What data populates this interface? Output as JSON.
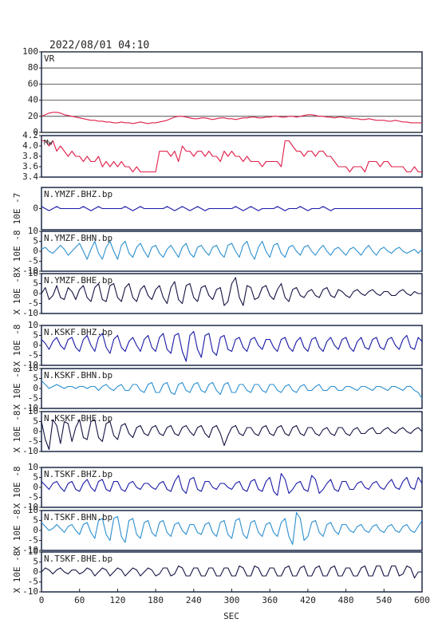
{
  "chart_data": {
    "type": "line",
    "title": "2022/08/01 04:10",
    "xlabel": "SEC",
    "xlim": [
      0,
      600
    ],
    "xticks": [
      0,
      60,
      120,
      180,
      240,
      300,
      360,
      420,
      480,
      540,
      600
    ],
    "x": [
      0,
      6,
      12,
      18,
      24,
      30,
      36,
      42,
      48,
      54,
      60,
      66,
      72,
      78,
      84,
      90,
      96,
      102,
      108,
      114,
      120,
      126,
      132,
      138,
      144,
      150,
      156,
      162,
      168,
      174,
      180,
      186,
      192,
      198,
      204,
      210,
      216,
      222,
      228,
      234,
      240,
      246,
      252,
      258,
      264,
      270,
      276,
      282,
      288,
      294,
      300,
      306,
      312,
      318,
      324,
      330,
      336,
      342,
      348,
      354,
      360,
      366,
      372,
      378,
      384,
      390,
      396,
      402,
      408,
      414,
      420,
      426,
      432,
      438,
      444,
      450,
      456,
      462,
      468,
      474,
      480,
      486,
      492,
      498,
      504,
      510,
      516,
      522,
      528,
      534,
      540,
      546,
      552,
      558,
      564,
      570,
      576,
      582,
      588,
      594,
      600
    ],
    "panels": [
      {
        "label": "VR",
        "color": "#e0204a",
        "ylim": [
          0,
          100
        ],
        "yticks": [
          0,
          20,
          40,
          60,
          80,
          100
        ],
        "grid": true,
        "values": [
          20,
          22,
          24,
          25,
          25,
          24,
          22,
          21,
          20,
          19,
          18,
          17,
          16,
          15,
          15,
          14,
          14,
          13,
          13,
          12,
          12,
          13,
          12,
          12,
          11,
          12,
          13,
          12,
          11,
          12,
          12,
          13,
          14,
          15,
          17,
          19,
          20,
          20,
          19,
          18,
          17,
          17,
          18,
          18,
          17,
          16,
          17,
          18,
          18,
          17,
          17,
          16,
          17,
          18,
          18,
          19,
          19,
          18,
          18,
          19,
          19,
          20,
          20,
          19,
          19,
          20,
          20,
          19,
          20,
          21,
          22,
          22,
          21,
          20,
          20,
          19,
          19,
          18,
          19,
          19,
          18,
          18,
          17,
          17,
          16,
          16,
          17,
          16,
          15,
          15,
          15,
          14,
          14,
          15,
          14,
          13,
          13,
          12,
          12,
          12,
          12
        ]
      },
      {
        "label": "Mw",
        "color": "#e0204a",
        "ylim": [
          3.4,
          4.2
        ],
        "yticks": [
          3.4,
          3.6,
          3.8,
          {
            "value": 4,
            "label": "4.0"
          },
          4.2
        ],
        "grid": false,
        "values": [
          4.1,
          4.1,
          4.0,
          4.1,
          3.9,
          4.0,
          3.9,
          3.8,
          3.9,
          3.8,
          3.8,
          3.7,
          3.8,
          3.7,
          3.7,
          3.8,
          3.6,
          3.7,
          3.6,
          3.7,
          3.6,
          3.7,
          3.6,
          3.6,
          3.5,
          3.6,
          3.5,
          3.5,
          3.5,
          3.5,
          3.5,
          3.9,
          3.9,
          3.9,
          3.8,
          3.9,
          3.7,
          4.0,
          3.9,
          3.9,
          3.8,
          3.9,
          3.9,
          3.8,
          3.9,
          3.8,
          3.8,
          3.7,
          3.9,
          3.8,
          3.9,
          3.8,
          3.8,
          3.7,
          3.8,
          3.7,
          3.7,
          3.7,
          3.6,
          3.7,
          3.7,
          3.7,
          3.7,
          3.6,
          4.1,
          4.1,
          4.0,
          3.9,
          3.9,
          3.8,
          3.9,
          3.9,
          3.8,
          3.9,
          3.9,
          3.8,
          3.8,
          3.7,
          3.6,
          3.6,
          3.6,
          3.5,
          3.6,
          3.6,
          3.6,
          3.5,
          3.7,
          3.7,
          3.7,
          3.6,
          3.7,
          3.7,
          3.6,
          3.6,
          3.6,
          3.6,
          3.5,
          3.5,
          3.6,
          3.5,
          3.5
        ]
      },
      {
        "label": "N.YMZF.BHZ.bp",
        "ylabel": "10E -7",
        "color": "#1a1aa8",
        "ylim": [
          -1,
          1
        ],
        "yticks": [
          0
        ],
        "grid": false,
        "values": [
          0.1,
          0,
          -0.1,
          0,
          0.1,
          0,
          0,
          0,
          0,
          0,
          0,
          0.1,
          0,
          -0.1,
          0,
          0.1,
          0,
          0,
          0,
          0,
          0,
          0,
          0.1,
          0,
          -0.1,
          0,
          0.1,
          0,
          0,
          0,
          0,
          0,
          0,
          0.1,
          0,
          -0.1,
          0,
          0.1,
          0,
          -0.1,
          0,
          0.1,
          0,
          -0.1,
          0,
          0,
          0,
          0,
          0,
          0,
          0,
          0.1,
          0,
          -0.1,
          0,
          0.1,
          0,
          -0.1,
          0,
          0,
          0,
          0,
          0.1,
          0,
          -0.1,
          0,
          0,
          0,
          0.1,
          0,
          -0.1,
          0,
          0,
          0,
          0.1,
          0,
          -0.1,
          0,
          0,
          0,
          0,
          0,
          0,
          0,
          0,
          0,
          0,
          0,
          0,
          0,
          0,
          0,
          0,
          0,
          0,
          0,
          0,
          0,
          0,
          0,
          0
        ]
      },
      {
        "label": "N.YMZF.BHN.bp",
        "ylabel": "X 10E -8",
        "color": "#2b8fd0",
        "ylim": [
          -10,
          10
        ],
        "yticks": [
          -10,
          -5,
          0,
          5,
          10
        ],
        "grid": false,
        "values": [
          1,
          2,
          0,
          -1,
          1,
          3,
          1,
          -2,
          0,
          2,
          4,
          0,
          -4,
          1,
          5,
          -1,
          -4,
          2,
          5,
          0,
          -4,
          3,
          5,
          -1,
          -3,
          2,
          4,
          0,
          -3,
          2,
          3,
          -1,
          -3,
          1,
          3,
          0,
          -3,
          2,
          4,
          -1,
          -3,
          2,
          3,
          0,
          -2,
          2,
          3,
          -1,
          -3,
          3,
          4,
          0,
          -3,
          3,
          5,
          -1,
          -4,
          2,
          5,
          0,
          -3,
          3,
          4,
          -1,
          -3,
          2,
          3,
          0,
          -2,
          2,
          3,
          0,
          -2,
          1,
          3,
          0,
          -2,
          1,
          2,
          0,
          -2,
          1,
          2,
          0,
          -2,
          1,
          3,
          0,
          -2,
          1,
          2,
          0,
          -1,
          1,
          2,
          0,
          -1,
          0,
          1,
          -1,
          1
        ]
      },
      {
        "label": "N.YMZF.BHE.bp",
        "ylabel": "X 10E -8",
        "color": "#141444",
        "ylim": [
          -10,
          10
        ],
        "yticks": [
          -10,
          -5,
          0,
          5,
          10
        ],
        "grid": false,
        "values": [
          0,
          3,
          -3,
          -1,
          4,
          -2,
          -3,
          3,
          1,
          -3,
          2,
          4,
          -2,
          -4,
          3,
          5,
          -3,
          -4,
          4,
          5,
          -2,
          -4,
          3,
          5,
          -2,
          -4,
          2,
          4,
          -1,
          -3,
          2,
          4,
          -2,
          -5,
          3,
          6,
          -3,
          -5,
          4,
          5,
          -2,
          -4,
          3,
          4,
          -1,
          -3,
          2,
          3,
          -6,
          -4,
          5,
          8,
          -2,
          -6,
          4,
          3,
          -3,
          -2,
          3,
          4,
          -1,
          -3,
          2,
          5,
          -2,
          -4,
          2,
          3,
          -1,
          -2,
          1,
          2,
          -1,
          -2,
          2,
          3,
          -1,
          -2,
          2,
          1,
          -1,
          -2,
          1,
          2,
          0,
          -1,
          1,
          2,
          0,
          -1,
          1,
          1,
          -1,
          -1,
          1,
          2,
          0,
          -1,
          1,
          0,
          0
        ]
      },
      {
        "label": "N.KSKF.BHZ.bp",
        "ylabel": "X 10E -8",
        "color": "#1a1aa8",
        "ylim": [
          -10,
          10
        ],
        "yticks": [
          -10,
          -5,
          0,
          5,
          10
        ],
        "grid": false,
        "values": [
          3,
          1,
          -2,
          2,
          4,
          0,
          -2,
          3,
          4,
          -1,
          -3,
          3,
          5,
          0,
          -3,
          4,
          6,
          -1,
          -4,
          3,
          5,
          -1,
          -3,
          2,
          4,
          0,
          -3,
          3,
          5,
          -1,
          -3,
          4,
          6,
          -2,
          -4,
          5,
          6,
          -3,
          -8,
          5,
          7,
          -2,
          -6,
          5,
          6,
          -3,
          -5,
          4,
          5,
          -2,
          -3,
          3,
          4,
          -1,
          -3,
          3,
          4,
          0,
          -2,
          3,
          3,
          -1,
          -3,
          3,
          4,
          -1,
          -3,
          2,
          4,
          -1,
          -3,
          3,
          4,
          -1,
          -3,
          2,
          4,
          0,
          -2,
          3,
          4,
          -1,
          -3,
          2,
          4,
          -1,
          -2,
          3,
          4,
          -1,
          -2,
          3,
          4,
          0,
          -2,
          3,
          5,
          -1,
          -2,
          4,
          2
        ]
      },
      {
        "label": "N.KSKF.BHN.bp",
        "ylabel": "X 10E -8",
        "color": "#2b8fd0",
        "ylim": [
          -10,
          10
        ],
        "yticks": [
          -10,
          -5,
          0,
          5,
          10
        ],
        "grid": false,
        "values": [
          4,
          2,
          0,
          1,
          2,
          1,
          0,
          1,
          1,
          0,
          1,
          1,
          0,
          1,
          1,
          -1,
          1,
          2,
          0,
          -1,
          1,
          2,
          -1,
          -1,
          2,
          2,
          -1,
          -2,
          2,
          3,
          -2,
          -2,
          2,
          3,
          -2,
          -3,
          2,
          3,
          -1,
          -2,
          2,
          3,
          -1,
          -2,
          2,
          3,
          -1,
          -3,
          2,
          3,
          -2,
          -2,
          2,
          2,
          -1,
          -2,
          2,
          2,
          -1,
          -2,
          2,
          2,
          -1,
          -2,
          1,
          2,
          -1,
          -2,
          1,
          2,
          -1,
          -1,
          1,
          2,
          -1,
          -1,
          1,
          1,
          -1,
          -1,
          1,
          1,
          0,
          -1,
          1,
          1,
          0,
          -1,
          1,
          1,
          0,
          -1,
          1,
          1,
          0,
          -1,
          1,
          1,
          -1,
          -2,
          -5
        ]
      },
      {
        "label": "N.KSKF.BHE.bp",
        "ylabel": "X 10E -8",
        "color": "#141444",
        "ylim": [
          -10,
          10
        ],
        "yticks": [
          -10,
          -5,
          0,
          5,
          10
        ],
        "grid": false,
        "values": [
          5,
          -4,
          -9,
          6,
          3,
          -6,
          5,
          4,
          -5,
          2,
          6,
          -3,
          -4,
          5,
          6,
          -3,
          -5,
          4,
          5,
          -2,
          -4,
          3,
          4,
          -1,
          -3,
          2,
          3,
          -1,
          -2,
          2,
          3,
          -1,
          -2,
          2,
          3,
          -1,
          -2,
          2,
          3,
          0,
          -2,
          2,
          3,
          -1,
          -3,
          2,
          3,
          -1,
          -7,
          -2,
          2,
          3,
          -1,
          -2,
          2,
          2,
          -1,
          -2,
          2,
          3,
          -1,
          -2,
          2,
          3,
          -1,
          -2,
          2,
          3,
          -1,
          -2,
          2,
          2,
          -1,
          -2,
          1,
          2,
          -1,
          -2,
          2,
          2,
          -1,
          -2,
          1,
          2,
          -1,
          -1,
          1,
          2,
          -1,
          -1,
          1,
          2,
          0,
          -1,
          1,
          2,
          0,
          -1,
          1,
          2,
          0
        ]
      },
      {
        "label": "N.TSKF.BHZ.bp",
        "ylabel": "X 10E -8",
        "color": "#1a1aa8",
        "ylim": [
          -10,
          10
        ],
        "yticks": [
          -10,
          -5,
          0,
          5,
          10
        ],
        "grid": false,
        "values": [
          3,
          1,
          -1,
          2,
          3,
          0,
          -2,
          2,
          3,
          -1,
          -2,
          2,
          4,
          0,
          -2,
          3,
          4,
          -1,
          -2,
          3,
          3,
          -1,
          -2,
          2,
          3,
          0,
          -1,
          2,
          2,
          0,
          -1,
          2,
          3,
          -1,
          -2,
          3,
          6,
          -1,
          -3,
          4,
          5,
          -1,
          -2,
          3,
          3,
          0,
          -1,
          2,
          2,
          0,
          -1,
          2,
          3,
          -1,
          -2,
          3,
          4,
          -1,
          -2,
          3,
          5,
          -2,
          -4,
          7,
          4,
          -3,
          -1,
          2,
          3,
          -1,
          -2,
          6,
          4,
          -3,
          -1,
          2,
          4,
          -1,
          -2,
          3,
          3,
          -1,
          -1,
          2,
          3,
          0,
          -1,
          2,
          3,
          0,
          -1,
          2,
          4,
          0,
          -1,
          3,
          5,
          0,
          -1,
          5,
          2
        ]
      },
      {
        "label": "N.TSKF.BHN.bp",
        "ylabel": "X 10E -8",
        "color": "#2b8fd0",
        "ylim": [
          -10,
          10
        ],
        "yticks": [
          -10,
          -5,
          0,
          5,
          10
        ],
        "grid": false,
        "values": [
          4,
          2,
          0,
          1,
          3,
          1,
          -1,
          2,
          3,
          0,
          -2,
          3,
          4,
          -1,
          -4,
          5,
          6,
          -2,
          -5,
          6,
          7,
          -3,
          -6,
          5,
          6,
          -2,
          -4,
          4,
          5,
          -1,
          -3,
          4,
          5,
          -1,
          -3,
          3,
          4,
          0,
          -2,
          3,
          3,
          -1,
          -2,
          3,
          4,
          -1,
          -3,
          4,
          5,
          -2,
          -4,
          5,
          6,
          -2,
          -4,
          4,
          5,
          -1,
          -3,
          3,
          4,
          -1,
          -3,
          4,
          6,
          -3,
          -7,
          9,
          6,
          -5,
          -3,
          4,
          5,
          -1,
          -3,
          3,
          4,
          0,
          -2,
          3,
          3,
          0,
          -1,
          2,
          3,
          0,
          -1,
          2,
          3,
          0,
          -1,
          2,
          3,
          0,
          -1,
          2,
          3,
          0,
          -1,
          2,
          5
        ]
      },
      {
        "label": "N.TSKF.BHE.bp",
        "ylabel": "X 10E -8",
        "color": "#141444",
        "ylim": [
          -10,
          10
        ],
        "yticks": [
          -10,
          -5,
          0,
          5,
          10
        ],
        "grid": false,
        "values": [
          0,
          2,
          1,
          -1,
          1,
          2,
          0,
          -1,
          1,
          1,
          -1,
          0,
          2,
          1,
          -2,
          0,
          2,
          1,
          -2,
          0,
          2,
          1,
          -2,
          0,
          2,
          1,
          -2,
          0,
          2,
          1,
          -2,
          -1,
          2,
          2,
          -2,
          -1,
          3,
          2,
          -2,
          -2,
          2,
          2,
          -2,
          -2,
          2,
          2,
          -2,
          -2,
          2,
          2,
          -2,
          -2,
          3,
          2,
          -2,
          -2,
          3,
          2,
          -2,
          -2,
          2,
          2,
          -2,
          -2,
          2,
          3,
          -2,
          -2,
          2,
          3,
          -2,
          -2,
          2,
          3,
          -2,
          -2,
          2,
          3,
          -2,
          -2,
          2,
          2,
          -2,
          -2,
          2,
          3,
          -2,
          -2,
          3,
          3,
          -2,
          -2,
          3,
          3,
          -2,
          -1,
          3,
          2,
          -3,
          0,
          0
        ]
      }
    ]
  }
}
